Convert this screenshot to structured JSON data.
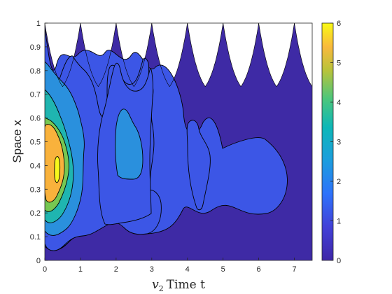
{
  "chart_data": {
    "type": "heatmap",
    "subtype": "filled-contour",
    "title": "",
    "xlabel": "Time t",
    "xlabel_variable": "v",
    "xlabel_subscript": "2",
    "ylabel": "Space x",
    "xlim": [
      0,
      7.5
    ],
    "ylim": [
      0,
      1
    ],
    "x_ticks": [
      "0",
      "1",
      "2",
      "3",
      "4",
      "5",
      "6",
      "7"
    ],
    "y_ticks": [
      "0",
      "0.1",
      "0.2",
      "0.3",
      "0.4",
      "0.5",
      "0.6",
      "0.7",
      "0.8",
      "0.9",
      "1"
    ],
    "colorbar": {
      "range": [
        0,
        6
      ],
      "ticks": [
        "0",
        "1",
        "2",
        "3",
        "4",
        "5",
        "6"
      ],
      "colormap": "parula",
      "placement": "right"
    },
    "contour_levels": [
      0.5,
      1.5,
      2.5,
      3.5,
      4.5,
      5.5
    ],
    "level_colors": [
      "#3f29a8",
      "#3a55e8",
      "#2b8fe0",
      "#1fb8b2",
      "#7cc953",
      "#fcb93f",
      "#f9f91c"
    ],
    "domain_upper_boundary": {
      "description": "domain top edge periodic in t with period 1",
      "peak_x": 1.0,
      "trough_x": 0.7,
      "cusp_times": [
        0,
        1,
        2,
        3,
        4,
        5,
        6,
        7
      ]
    },
    "regions": [
      {
        "level": 5,
        "description": "peak near t=0.3, x=0.45"
      },
      {
        "level": 6,
        "center": [
          0.32,
          0.37
        ]
      },
      {
        "level": 2,
        "description": "secondary pulses near t=1.0, 2.3, 4.3"
      }
    ],
    "grid": false
  }
}
